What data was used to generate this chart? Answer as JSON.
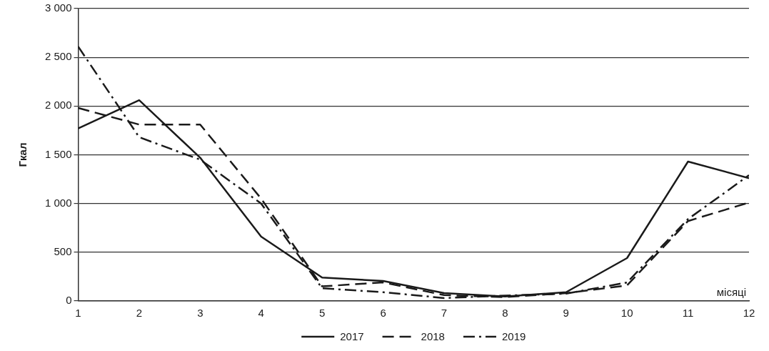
{
  "chart_data": {
    "type": "line",
    "xlabel": "місяці",
    "ylabel": "Гкал",
    "x": [
      1,
      2,
      3,
      4,
      5,
      6,
      7,
      8,
      9,
      10,
      11,
      12
    ],
    "xlim": [
      1,
      12
    ],
    "xticks": [
      1,
      2,
      3,
      4,
      5,
      6,
      7,
      8,
      9,
      10,
      11,
      12
    ],
    "ylim": [
      0,
      3000
    ],
    "yticks": [
      0,
      500,
      {
        "value": 1000,
        "label": "1 000"
      },
      {
        "value": 1500,
        "label": "1 500"
      },
      {
        "value": 2000,
        "label": "2 000"
      },
      {
        "value": 2500,
        "label": "2 500"
      },
      {
        "value": 3000,
        "label": "3 000"
      }
    ],
    "grid": "y",
    "legend": "bottom",
    "marker": "none",
    "series": [
      {
        "name": "2017",
        "color": "#1a1a1a",
        "line_style": "solid",
        "values": [
          1770,
          2060,
          1470,
          660,
          240,
          205,
          80,
          45,
          90,
          440,
          1430,
          1260
        ]
      },
      {
        "name": "2018",
        "color": "#1a1a1a",
        "line_style": "dashed",
        "values": [
          1980,
          1810,
          1810,
          1050,
          150,
          190,
          60,
          40,
          80,
          160,
          820,
          1010
        ]
      },
      {
        "name": "2019",
        "color": "#1a1a1a",
        "line_style": "dashdot",
        "values": [
          2610,
          1680,
          1450,
          1000,
          130,
          90,
          30,
          55,
          75,
          190,
          840,
          1290
        ]
      }
    ]
  }
}
